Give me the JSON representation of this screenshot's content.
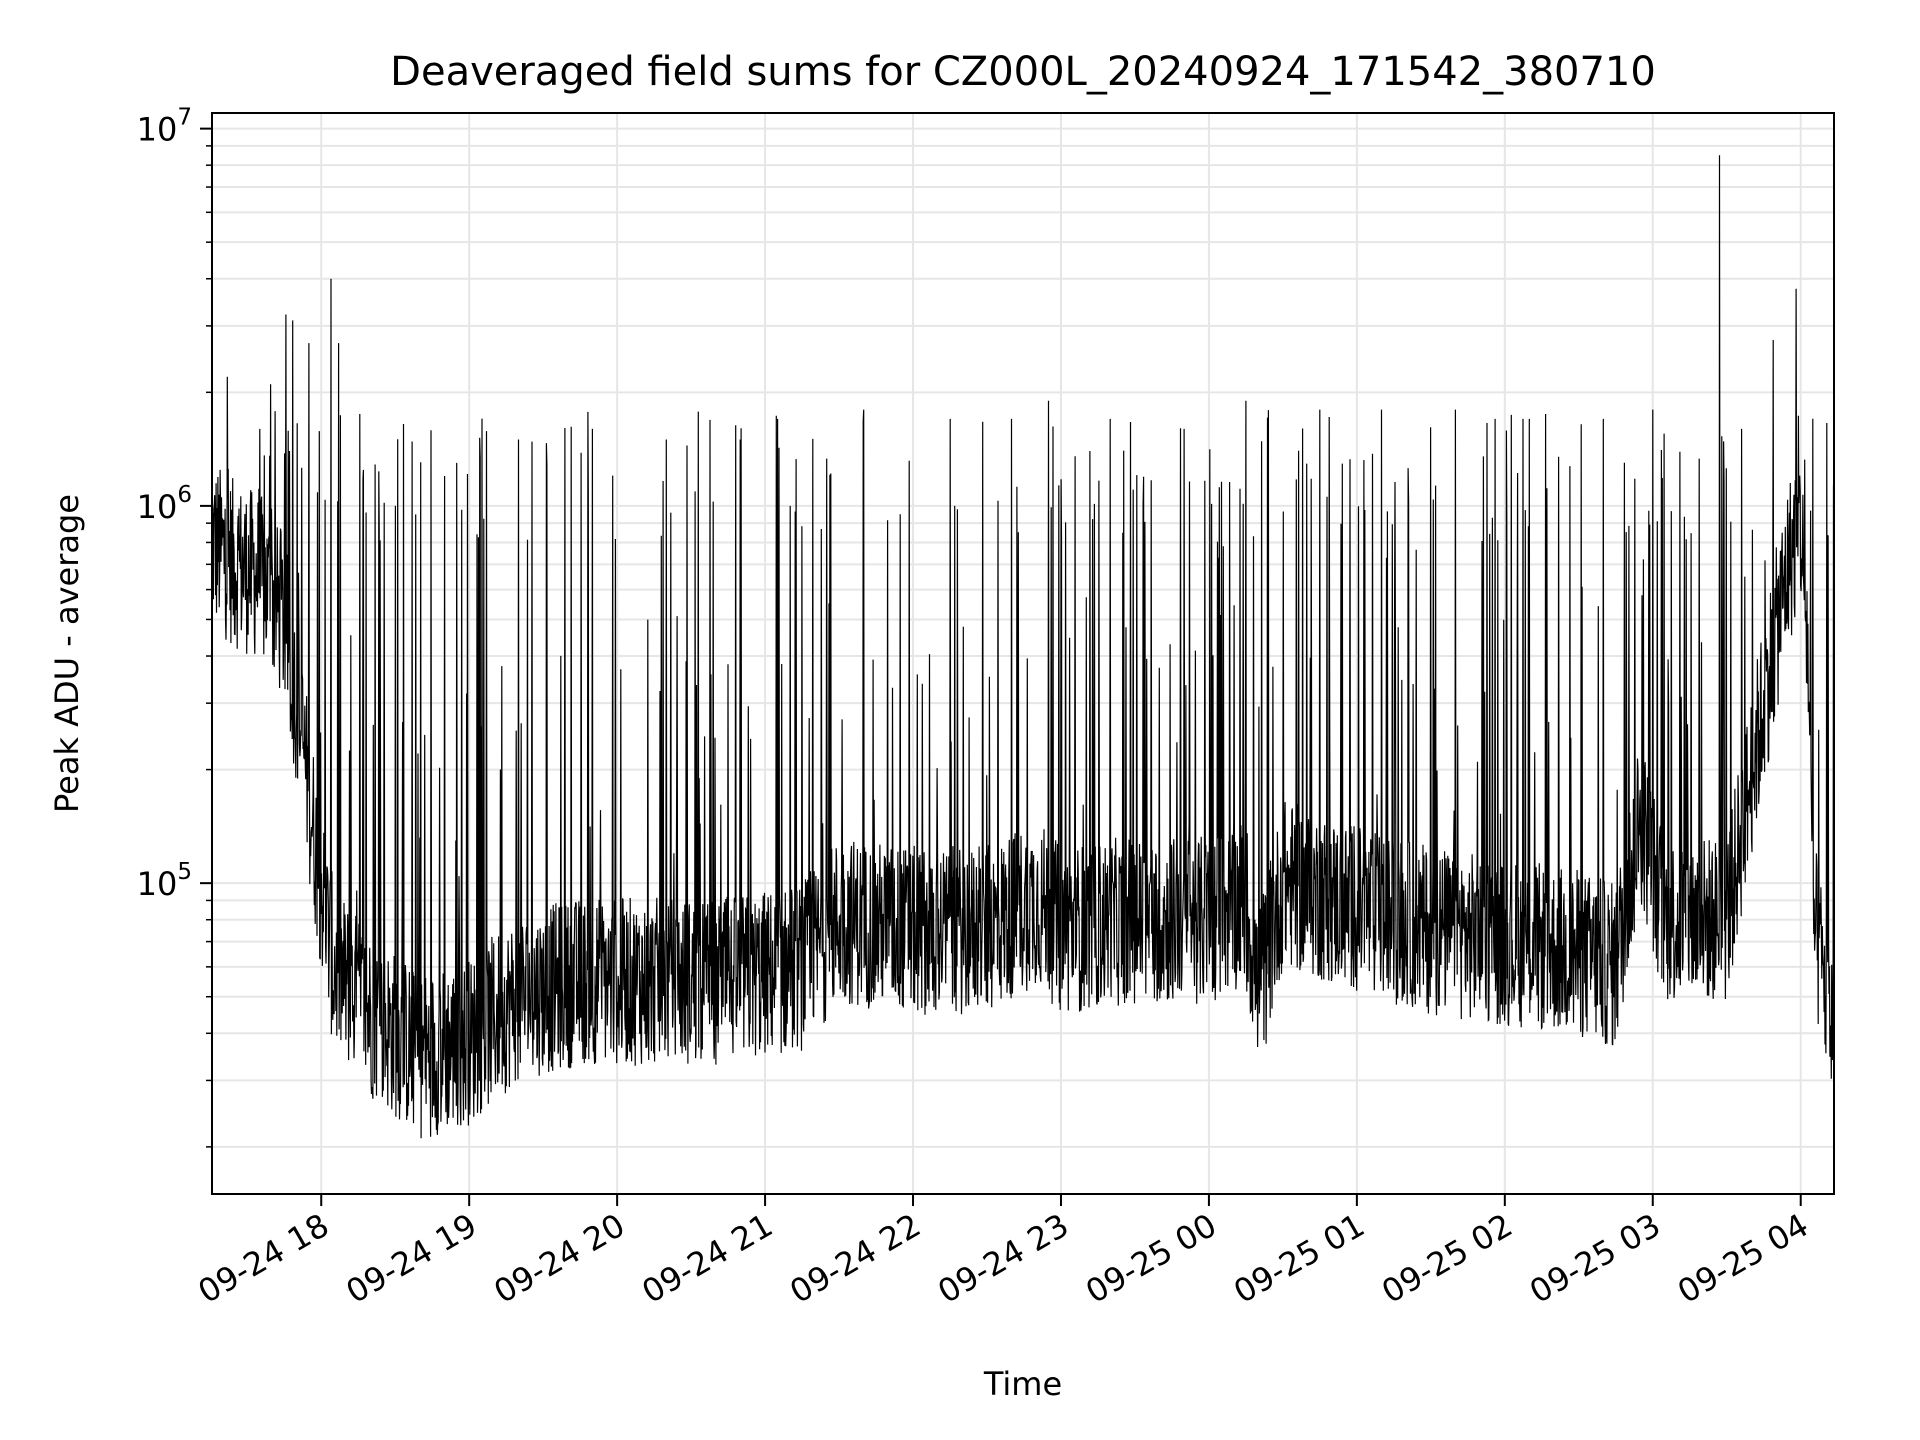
{
  "chart_data": {
    "type": "line",
    "title": "Deaveraged field sums for CZ000L_20240924_171542_380710",
    "xlabel": "Time",
    "ylabel": "Peak ADU - average",
    "yscale": "log",
    "xlim": [
      "2024-09-24 17:15:42",
      "2024-09-25 04:13:30"
    ],
    "ylim": [
      15000,
      11000000
    ],
    "grid": true,
    "line_color": "#000000",
    "grid_color": "#e6e6e6",
    "x_ticks": [
      {
        "time": "2024-09-24 18:00",
        "label": "09-24 18"
      },
      {
        "time": "2024-09-24 19:00",
        "label": "09-24 19"
      },
      {
        "time": "2024-09-24 20:00",
        "label": "09-24 20"
      },
      {
        "time": "2024-09-24 21:00",
        "label": "09-24 21"
      },
      {
        "time": "2024-09-24 22:00",
        "label": "09-24 22"
      },
      {
        "time": "2024-09-24 23:00",
        "label": "09-24 23"
      },
      {
        "time": "2024-09-25 00:00",
        "label": "09-25 00"
      },
      {
        "time": "2024-09-25 01:00",
        "label": "09-25 01"
      },
      {
        "time": "2024-09-25 02:00",
        "label": "09-25 02"
      },
      {
        "time": "2024-09-25 03:00",
        "label": "09-25 03"
      },
      {
        "time": "2024-09-25 04:00",
        "label": "09-25 04"
      }
    ],
    "y_ticks": [
      {
        "value": 100000,
        "base": "10",
        "exp": "5"
      },
      {
        "value": 1000000,
        "base": "10",
        "exp": "6"
      },
      {
        "value": 10000000,
        "base": "10",
        "exp": "7"
      }
    ],
    "series": [
      {
        "baseline": [
          [
            "2024-09-24 17:15:42",
            800000
          ],
          [
            "2024-09-24 17:25",
            700000
          ],
          [
            "2024-09-24 17:35",
            650000
          ],
          [
            "2024-09-24 17:45",
            500000
          ],
          [
            "2024-09-24 17:52",
            250000
          ],
          [
            "2024-09-24 17:58",
            120000
          ],
          [
            "2024-09-24 18:05",
            60000
          ],
          [
            "2024-09-24 18:20",
            45000
          ],
          [
            "2024-09-24 18:40",
            35000
          ],
          [
            "2024-09-24 19:00",
            38000
          ],
          [
            "2024-09-24 19:20",
            50000
          ],
          [
            "2024-09-24 19:45",
            55000
          ],
          [
            "2024-09-24 20:15",
            55000
          ],
          [
            "2024-09-24 20:45",
            55000
          ],
          [
            "2024-09-24 21:15",
            60000
          ],
          [
            "2024-09-24 21:30",
            80000
          ],
          [
            "2024-09-24 22:00",
            75000
          ],
          [
            "2024-09-24 22:30",
            75000
          ],
          [
            "2024-09-24 22:50",
            90000
          ],
          [
            "2024-09-24 23:00",
            75000
          ],
          [
            "2024-09-24 23:30",
            80000
          ],
          [
            "2024-09-25 00:00",
            80000
          ],
          [
            "2024-09-25 00:15",
            90000
          ],
          [
            "2024-09-25 00:20",
            50000
          ],
          [
            "2024-09-25 00:30",
            100000
          ],
          [
            "2024-09-25 01:00",
            85000
          ],
          [
            "2024-09-25 01:30",
            75000
          ],
          [
            "2024-09-25 02:00",
            70000
          ],
          [
            "2024-09-25 02:30",
            65000
          ],
          [
            "2024-09-25 02:45",
            60000
          ],
          [
            "2024-09-25 02:55",
            150000
          ],
          [
            "2024-09-25 03:05",
            80000
          ],
          [
            "2024-09-25 03:30",
            80000
          ],
          [
            "2024-09-25 03:45",
            300000
          ],
          [
            "2024-09-25 03:55",
            700000
          ],
          [
            "2024-09-25 04:00",
            900000
          ],
          [
            "2024-09-25 04:03",
            400000
          ],
          [
            "2024-09-25 04:05",
            80000
          ],
          [
            "2024-09-25 04:13:30",
            40000
          ]
        ],
        "spikes": [
          [
            "2024-09-24 17:22",
            2200000
          ],
          [
            "2024-09-24 17:35",
            1600000
          ],
          [
            "2024-09-24 17:55",
            2700000
          ],
          [
            "2024-09-24 18:04",
            4000000
          ],
          [
            "2024-09-24 18:07",
            2700000
          ],
          [
            "2024-09-24 18:30",
            1000000
          ],
          [
            "2024-09-24 18:50",
            1200000
          ],
          [
            "2024-09-24 18:55",
            1300000
          ],
          [
            "2024-09-24 19:20",
            1500000
          ],
          [
            "2024-09-24 19:50",
            1600000
          ],
          [
            "2024-09-24 20:20",
            1500000
          ],
          [
            "2024-09-24 20:50",
            1500000
          ],
          [
            "2024-09-24 21:05",
            1700000
          ],
          [
            "2024-09-24 21:40",
            1800000
          ],
          [
            "2024-09-24 22:15",
            1700000
          ],
          [
            "2024-09-24 22:40",
            1700000
          ],
          [
            "2024-09-24 22:55",
            1900000
          ],
          [
            "2024-09-24 23:20",
            1700000
          ],
          [
            "2024-09-24 23:50",
            1600000
          ],
          [
            "2024-09-25 00:15",
            1900000
          ],
          [
            "2024-09-25 00:45",
            1800000
          ],
          [
            "2024-09-25 01:10",
            1800000
          ],
          [
            "2024-09-25 01:40",
            1800000
          ],
          [
            "2024-09-25 02:10",
            1700000
          ],
          [
            "2024-09-25 02:40",
            1700000
          ],
          [
            "2024-09-25 03:00",
            1800000
          ],
          [
            "2024-09-25 03:27",
            8500000
          ],
          [
            "2024-09-25 03:36",
            1600000
          ]
        ]
      }
    ]
  }
}
